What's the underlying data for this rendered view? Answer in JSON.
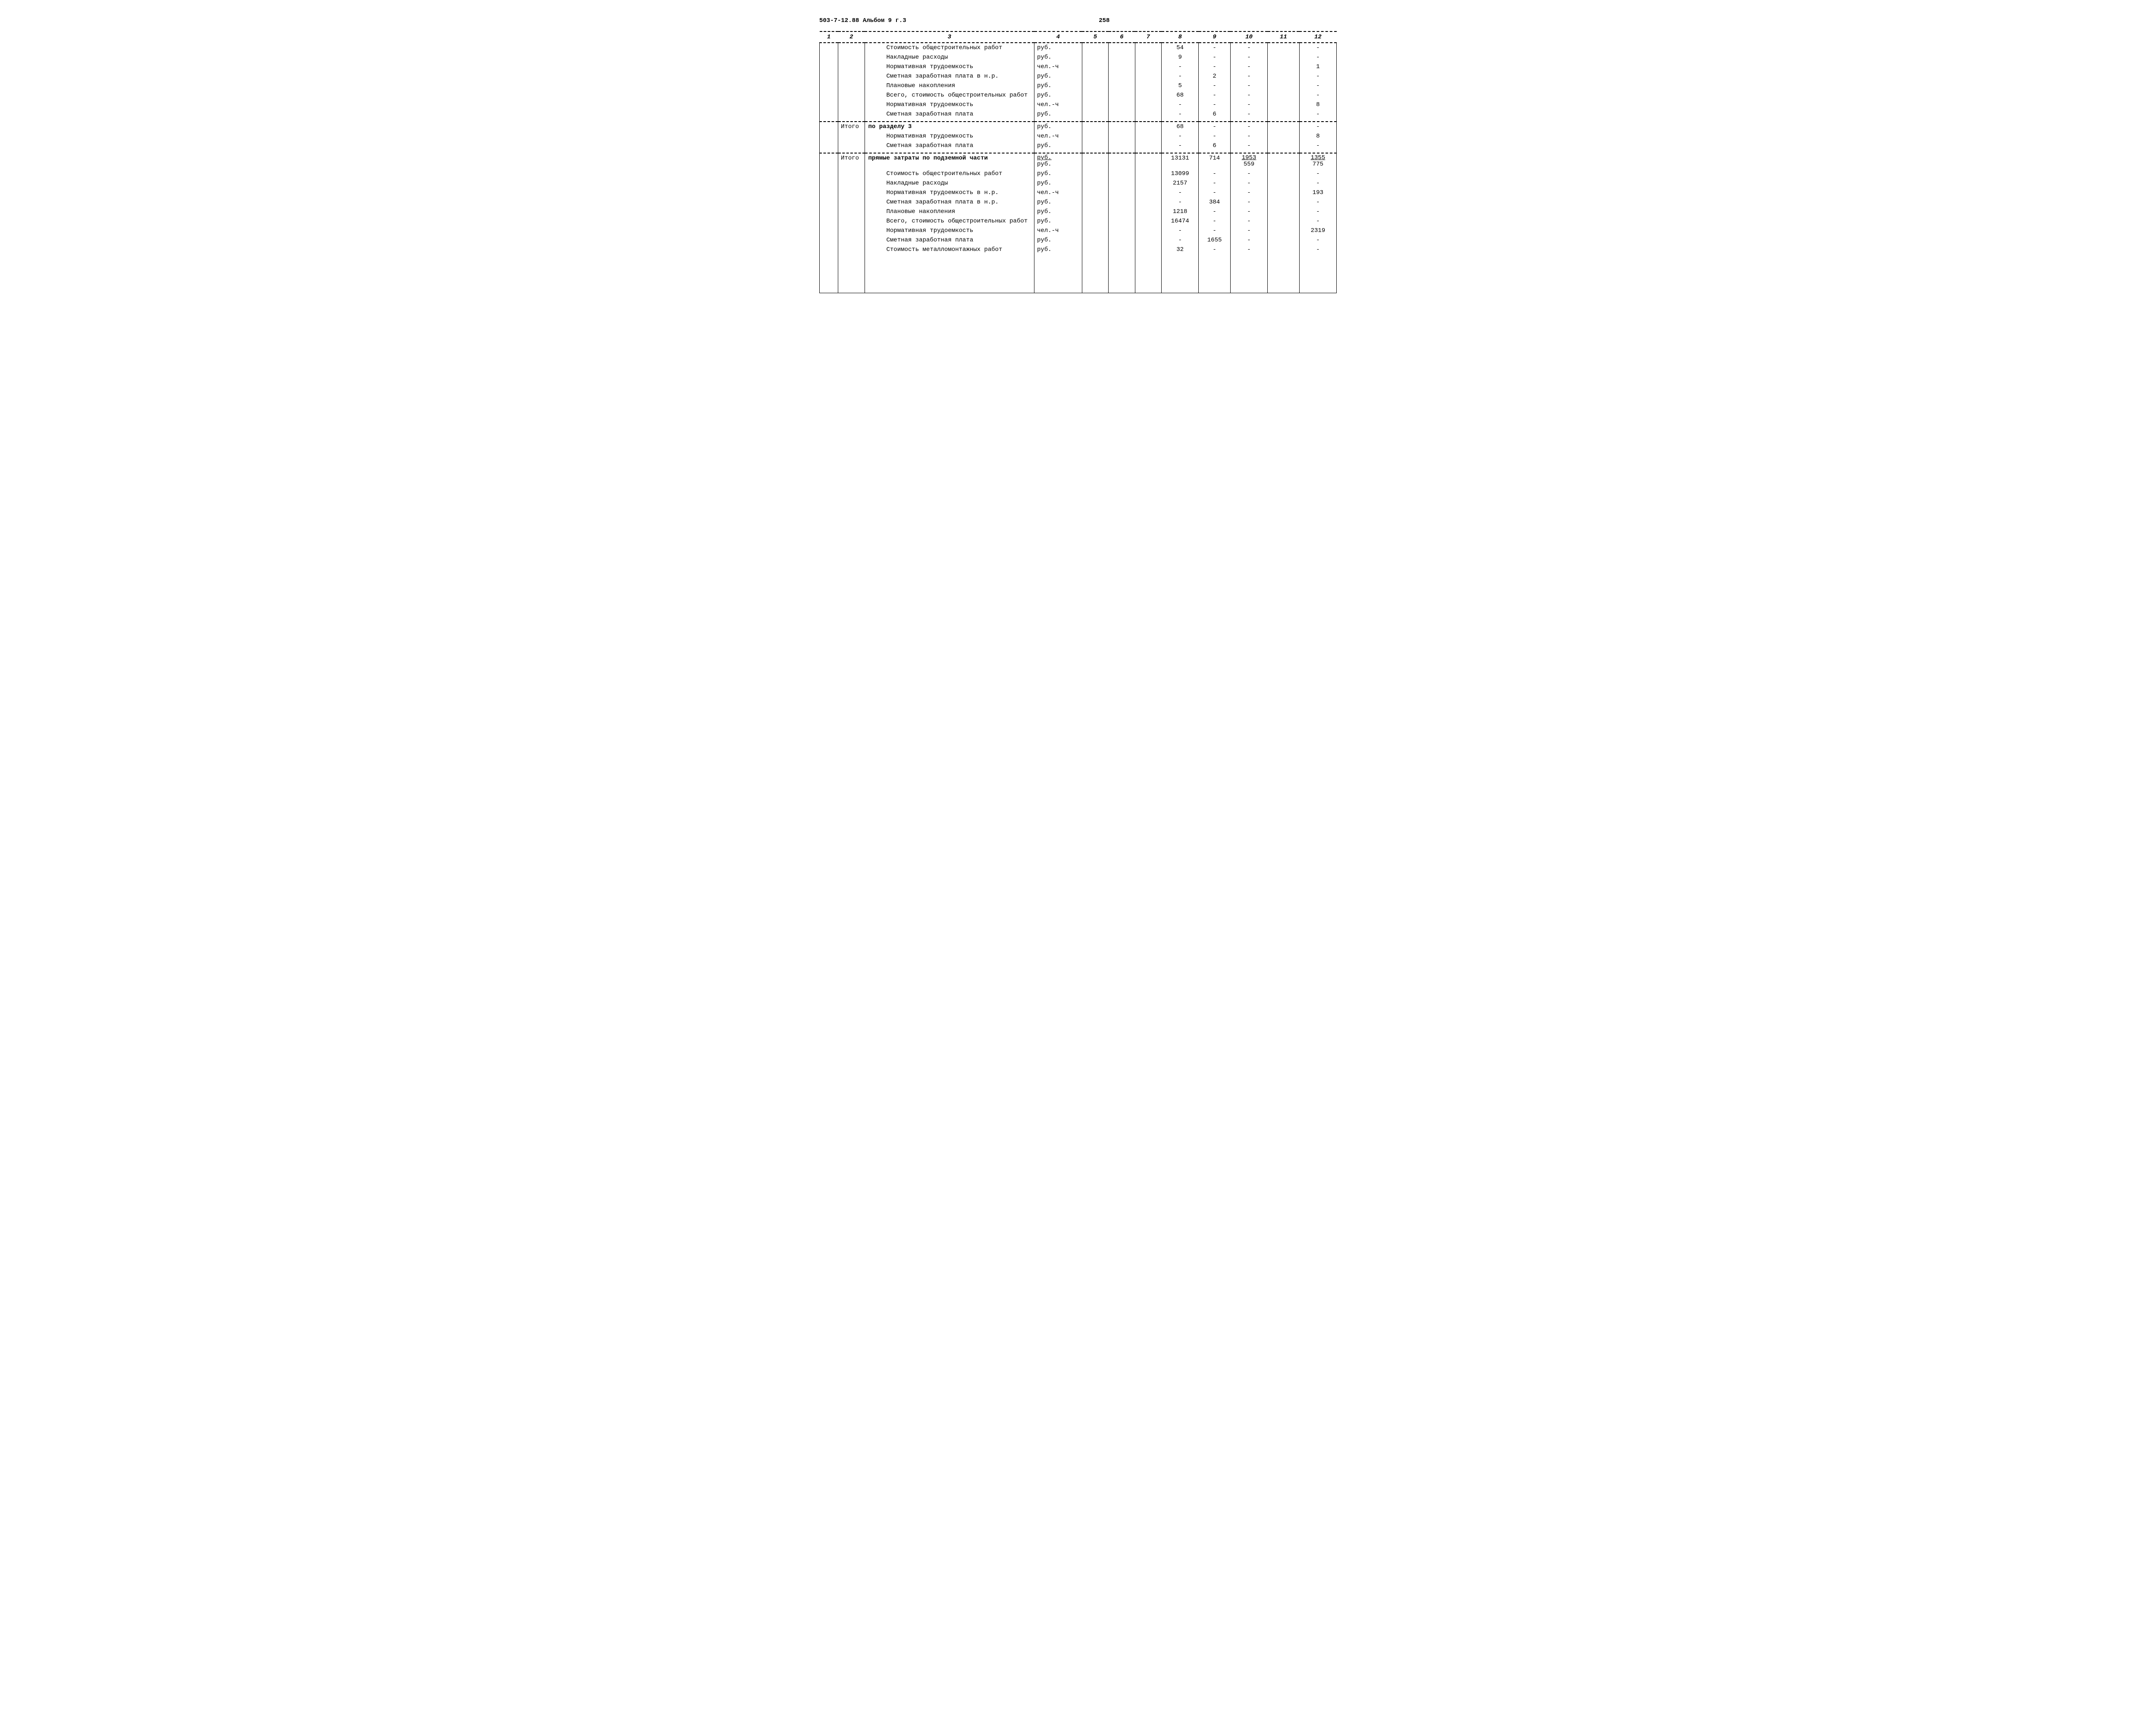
{
  "doc_header_left": "503-7-12.88  Альбом 9 г.3",
  "page_number": "258",
  "columns": [
    "1",
    "2",
    "3",
    "4",
    "5",
    "6",
    "7",
    "8",
    "9",
    "10",
    "11",
    "12"
  ],
  "rows": [
    {
      "c3": "Стоимость общестроительных работ",
      "indent": true,
      "c4": "руб.",
      "c8": "54",
      "c9": "-",
      "c10": "-",
      "c12": "-"
    },
    {
      "c3": "Накладные расходы",
      "indent": true,
      "c4": "руб.",
      "c8": "9",
      "c9": "-",
      "c10": "-",
      "c12": "-"
    },
    {
      "c3": "Нормативная трудоемкость",
      "indent": true,
      "c4": "чел.-ч",
      "c8": "-",
      "c9": "-",
      "c10": "-",
      "c12": "1"
    },
    {
      "c3": "Сметная заработная плата в н.р.",
      "indent": true,
      "c4": "руб.",
      "c8": "-",
      "c9": "2",
      "c10": "-",
      "c12": "-"
    },
    {
      "c3": "Плановые накопления",
      "indent": true,
      "c4": "руб.",
      "c8": "5",
      "c9": "-",
      "c10": "-",
      "c12": "-"
    },
    {
      "c3": "Всего, стоимость общестроительных работ",
      "indent": true,
      "c4": "руб.",
      "c8": "68",
      "c9": "-",
      "c10": "-",
      "c12": "-"
    },
    {
      "c3": "Нормативная трудоемкость",
      "indent": true,
      "c4": "чел.-ч",
      "c8": "-",
      "c9": "-",
      "c10": "-",
      "c12": "8"
    },
    {
      "c3": "Сметная заработная плата",
      "indent": true,
      "c4": "руб.",
      "c8": "-",
      "c9": "6",
      "c10": "-",
      "c12": "-"
    },
    {
      "sep": true
    },
    {
      "c2": "Итого",
      "c3": "по разделу 3",
      "indent": false,
      "c4": "руб.",
      "c8": "68",
      "c9": "-",
      "c10": "-",
      "c12": "-"
    },
    {
      "c3": "Нормативная трудоемкость",
      "indent": true,
      "c4": "чел.-ч",
      "c8": "-",
      "c9": "-",
      "c10": "-",
      "c12": "8"
    },
    {
      "c3": "Сметная заработная плата",
      "indent": true,
      "c4": "руб.",
      "c8": "-",
      "c9": "6",
      "c10": "-",
      "c12": "-"
    },
    {
      "sep": true
    },
    {
      "c2": "Итого",
      "c3": "прямые затраты по подземной части",
      "indent": false,
      "c4_stack": {
        "top": "руб.",
        "bot": "руб."
      },
      "c8": "13131",
      "c9": "714",
      "c10_stack": {
        "top": "1953",
        "bot": "559"
      },
      "c12_stack": {
        "top": "1355",
        "bot": "775"
      }
    },
    {
      "c3": "Стоимость общестроительных работ",
      "indent": true,
      "c4": "руб.",
      "c8": "13099",
      "c9": "-",
      "c10": "-",
      "c12": "-"
    },
    {
      "c3": "Накладные расходы",
      "indent": true,
      "c4": "руб.",
      "c8": "2157",
      "c9": "-",
      "c10": "-",
      "c12": "-"
    },
    {
      "c3": "Нормативная трудоемкость в н.р.",
      "indent": true,
      "c4": "чел.-ч",
      "c8": "-",
      "c9": "-",
      "c10": "-",
      "c12": "193"
    },
    {
      "c3": "Сметная заработная плата в н.р.",
      "indent": true,
      "c4": "руб.",
      "c8": "-",
      "c9": "384",
      "c10": "-",
      "c12": "-"
    },
    {
      "c3": "Плановые накопления",
      "indent": true,
      "c4": "руб.",
      "c8": "1218",
      "c9": "-",
      "c10": "-",
      "c12": "-"
    },
    {
      "c3": "Всего, стоимость общестроительных работ",
      "indent": true,
      "c4": "руб.",
      "c8": "16474",
      "c9": "-",
      "c10": "-",
      "c12": "-"
    },
    {
      "c3": "Нормативная трудоемкость",
      "indent": true,
      "c4": "чел.-ч",
      "c8": "-",
      "c9": "-",
      "c10": "-",
      "c12": "2319"
    },
    {
      "c3": "Сметная заработная плата",
      "indent": true,
      "c4": "руб.",
      "c8": "-",
      "c9": "1655",
      "c10": "-",
      "c12": "-"
    },
    {
      "c3": "Стоимость металломонтажных работ",
      "indent": true,
      "c4": "руб.",
      "c8": "32",
      "c9": "-",
      "c10": "-",
      "c12": "-"
    },
    {
      "blank": true
    }
  ]
}
